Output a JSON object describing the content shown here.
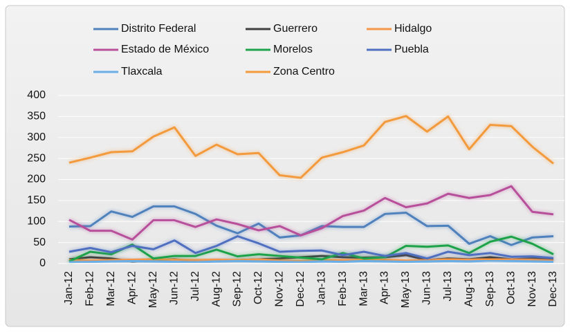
{
  "chart_data": {
    "type": "line",
    "categories": [
      "Jan-12",
      "Feb-12",
      "Mar-12",
      "Apr-12",
      "May-12",
      "Jun-12",
      "Jul-12",
      "Aug-12",
      "Sep-12",
      "Oct-12",
      "Nov-12",
      "Dec-12",
      "Jan-13",
      "Feb-13",
      "Mar-13",
      "Apr-13",
      "May-13",
      "Jun-13",
      "Jul-13",
      "Aug-13",
      "Sep-13",
      "Oct-13",
      "Nov-13",
      "Dec-13"
    ],
    "series": [
      {
        "name": "Distrito Federal",
        "color": "#4f81bd",
        "values": [
          88,
          89,
          124,
          111,
          136,
          136,
          118,
          90,
          72,
          95,
          62,
          67,
          89,
          87,
          87,
          118,
          121,
          89,
          90,
          47,
          65,
          44,
          62,
          65
        ]
      },
      {
        "name": "Guerrero",
        "color": "#404040",
        "values": [
          10,
          15,
          12,
          5,
          8,
          10,
          5,
          7,
          8,
          10,
          12,
          15,
          18,
          15,
          14,
          15,
          20,
          8,
          12,
          10,
          15,
          10,
          12,
          10
        ]
      },
      {
        "name": "Hidalgo",
        "color": "#f79646",
        "values": [
          8,
          7,
          8,
          9,
          10,
          9,
          8,
          9,
          8,
          10,
          7,
          6,
          8,
          8,
          9,
          9,
          7,
          8,
          10,
          9,
          11,
          10,
          9,
          7
        ]
      },
      {
        "name": "Estado de México",
        "color": "#b8509b",
        "values": [
          104,
          78,
          78,
          57,
          103,
          103,
          87,
          105,
          94,
          79,
          89,
          67,
          84,
          113,
          126,
          156,
          134,
          143,
          166,
          156,
          163,
          184,
          123,
          117
        ]
      },
      {
        "name": "Morelos",
        "color": "#1ea34a",
        "values": [
          5,
          28,
          22,
          45,
          12,
          18,
          18,
          33,
          17,
          22,
          18,
          14,
          10,
          25,
          12,
          15,
          42,
          40,
          43,
          25,
          52,
          64,
          47,
          22
        ]
      },
      {
        "name": "Puebla",
        "color": "#4f6fc0",
        "values": [
          28,
          37,
          27,
          42,
          34,
          55,
          25,
          42,
          65,
          48,
          28,
          30,
          31,
          20,
          28,
          18,
          25,
          12,
          28,
          20,
          25,
          16,
          17,
          13
        ]
      },
      {
        "name": "Tlaxcala",
        "color": "#6aaee8",
        "values": [
          3,
          4,
          5,
          6,
          5,
          4,
          3,
          5,
          6,
          5,
          4,
          3,
          5,
          4,
          6,
          5,
          4,
          5,
          6,
          5,
          7,
          6,
          5,
          4
        ]
      },
      {
        "name": "Zona Centro",
        "color": "#f39a3c",
        "values": [
          240,
          252,
          265,
          267,
          302,
          324,
          256,
          283,
          260,
          263,
          210,
          204,
          252,
          265,
          281,
          337,
          351,
          314,
          350,
          272,
          330,
          327,
          278,
          238
        ]
      }
    ],
    "ylim": [
      0,
      400
    ],
    "yticks": [
      0,
      50,
      100,
      150,
      200,
      250,
      300,
      350,
      400
    ],
    "grid": true
  }
}
